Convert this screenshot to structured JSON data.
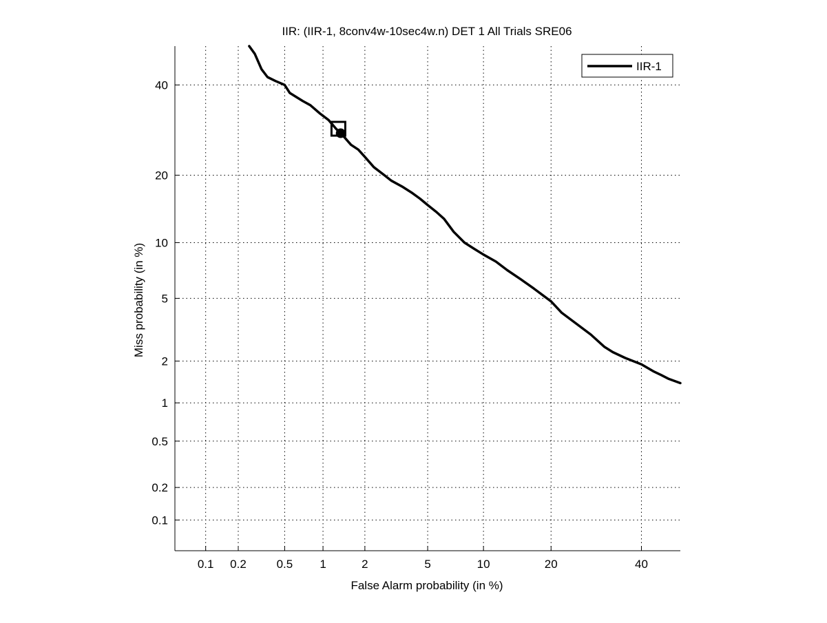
{
  "chart_data": {
    "type": "line",
    "title": "IIR: (IIR-1, 8conv4w-10sec4w.n) DET 1 All Trials SRE06",
    "xlabel": "False Alarm probability (in %)",
    "ylabel": "Miss probability (in %)",
    "x_scale": "probit",
    "y_scale": "probit",
    "xlim": [
      0.05,
      50
    ],
    "ylim": [
      0.05,
      50
    ],
    "x_ticks": [
      0.1,
      0.2,
      0.5,
      1,
      2,
      5,
      10,
      20,
      40
    ],
    "x_tick_labels": [
      "0.1",
      "0.2",
      "0.5",
      "1",
      "2",
      "5",
      "10",
      "20",
      "40"
    ],
    "y_ticks": [
      0.1,
      0.2,
      0.5,
      1,
      2,
      5,
      10,
      20,
      40
    ],
    "y_tick_labels": [
      "0.1",
      "0.2",
      "0.5",
      "1",
      "2",
      "5",
      "10",
      "20",
      "40"
    ],
    "grid": true,
    "legend_position": "top-right",
    "colors": {
      "line": "#000000",
      "grid": "#000000",
      "background": "#ffffff"
    },
    "series": [
      {
        "name": "IIR-1",
        "x": [
          0.25,
          0.28,
          0.32,
          0.36,
          0.42,
          0.5,
          0.55,
          0.62,
          0.7,
          0.8,
          0.95,
          1.1,
          1.25,
          1.45,
          1.6,
          1.8,
          2.0,
          2.3,
          2.7,
          3.0,
          3.5,
          4.0,
          4.5,
          5.0,
          5.6,
          6.2,
          7.0,
          8.0,
          9.0,
          10.0,
          11.5,
          13.0,
          15.0,
          17.0,
          20.0,
          22.0,
          25.0,
          28.0,
          31.0,
          33.0,
          36.0,
          40.0,
          43.0,
          45.0,
          47.0,
          50.0
        ],
        "y": [
          50,
          48,
          44,
          42,
          41,
          40,
          38,
          37,
          36,
          35,
          33,
          31.5,
          29.5,
          27.5,
          26,
          25,
          23.5,
          21.5,
          20,
          19,
          18,
          17,
          16,
          15,
          14,
          13,
          11.3,
          10,
          9.3,
          8.7,
          8,
          7.2,
          6.4,
          5.7,
          4.8,
          4.1,
          3.5,
          3.0,
          2.5,
          2.3,
          2.1,
          1.9,
          1.7,
          1.6,
          1.5,
          1.4
        ]
      }
    ],
    "markers": [
      {
        "shape": "square",
        "x": 1.3,
        "y": 29.5
      },
      {
        "shape": "circle",
        "x": 1.35,
        "y": 28.5
      }
    ]
  }
}
